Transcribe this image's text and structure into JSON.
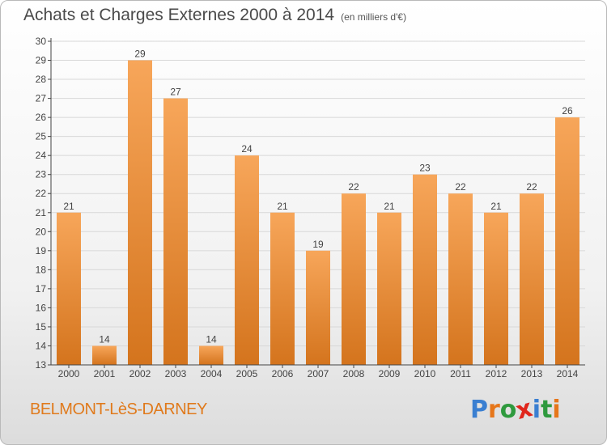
{
  "header": {
    "title": "Achats et Charges Externes 2000 à 2014",
    "unit": "(en milliers d'€)"
  },
  "footer": {
    "place": "BELMONT-LèS-DARNEY",
    "logo": {
      "letters": [
        "P",
        "r",
        "o",
        "x",
        "i",
        "t",
        "i"
      ],
      "colors": [
        "#3a7fd1",
        "#e6761a",
        "#2f9a3e",
        "#e0261c",
        "#3a7fd1",
        "#2f9a3e",
        "#e6761a"
      ]
    }
  },
  "colors": {
    "bar_top": "#f7a65a",
    "bar_bottom": "#d4741d",
    "grid": "#d8d8d8",
    "axis": "#444444",
    "text": "#444444"
  },
  "chart_data": {
    "type": "bar",
    "categories": [
      "2000",
      "2001",
      "2002",
      "2003",
      "2004",
      "2005",
      "2006",
      "2007",
      "2008",
      "2009",
      "2010",
      "2011",
      "2012",
      "2013",
      "2014"
    ],
    "values": [
      21,
      14,
      29,
      27,
      14,
      24,
      21,
      19,
      22,
      21,
      23,
      22,
      21,
      22,
      26
    ],
    "ylim": [
      13,
      30
    ],
    "yticks": [
      13,
      14,
      15,
      16,
      17,
      18,
      19,
      20,
      21,
      22,
      23,
      24,
      25,
      26,
      27,
      28,
      29,
      30
    ],
    "grid": true,
    "data_labels": true
  }
}
